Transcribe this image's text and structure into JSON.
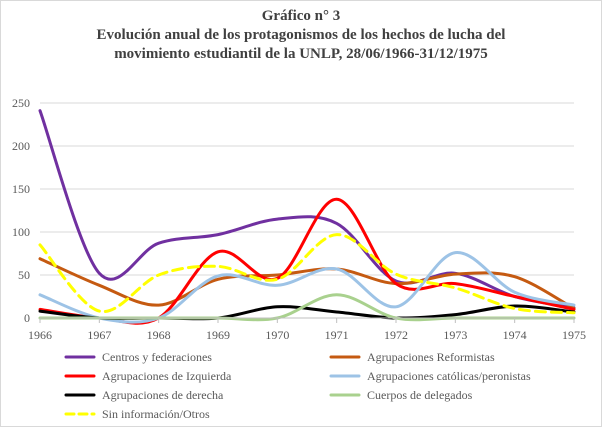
{
  "chart_data": {
    "type": "line",
    "title": [
      "Gráfico n° 3",
      "Evolución  anual  de los protagonismos  de los hechos de lucha  del",
      "movimiento  estudiantil  de la UNLP, 28/06/1966-31/12/1975"
    ],
    "xlabel": "",
    "ylabel": "",
    "categories": [
      "1966",
      "1967",
      "1968",
      "1969",
      "1970",
      "1971",
      "1972",
      "1973",
      "1974",
      "1975"
    ],
    "ylim": [
      0,
      250
    ],
    "yticks": [
      "0",
      "50",
      "100",
      "150",
      "200",
      "250"
    ],
    "grid": true,
    "smooth": true,
    "legend_position": "bottom",
    "series": [
      {
        "name": "Centros y federaciones",
        "color": "#7030a0",
        "dashed": false,
        "values": [
          241,
          52,
          87,
          97,
          115,
          110,
          43,
          52,
          25,
          12
        ]
      },
      {
        "name": "Agrupaciones Reformistas",
        "color": "#c55a11",
        "dashed": false,
        "values": [
          69,
          38,
          15,
          45,
          50,
          57,
          40,
          51,
          48,
          11
        ]
      },
      {
        "name": "Agrupaciones de Izquierda",
        "color": "#ff0000",
        "dashed": false,
        "values": [
          10,
          0,
          0,
          77,
          46,
          138,
          40,
          40,
          25,
          10
        ]
      },
      {
        "name": "Agrupaciones católicas/peronistas",
        "color": "#9dc3e6",
        "dashed": false,
        "values": [
          27,
          0,
          0,
          49,
          38,
          57,
          13,
          76,
          30,
          15
        ]
      },
      {
        "name": "Agrupaciones de derecha",
        "color": "#000000",
        "dashed": false,
        "values": [
          8,
          0,
          0,
          0,
          13,
          7,
          0,
          4,
          14,
          7
        ]
      },
      {
        "name": "Cuerpos de delegados",
        "color": "#a9d18e",
        "dashed": false,
        "values": [
          0,
          0,
          0,
          0,
          0,
          27,
          0,
          0,
          0,
          0
        ]
      },
      {
        "name": "Sin información/Otros",
        "color": "#ffff00",
        "dashed": true,
        "values": [
          85,
          8,
          50,
          60,
          45,
          97,
          51,
          35,
          11,
          6
        ]
      }
    ]
  }
}
